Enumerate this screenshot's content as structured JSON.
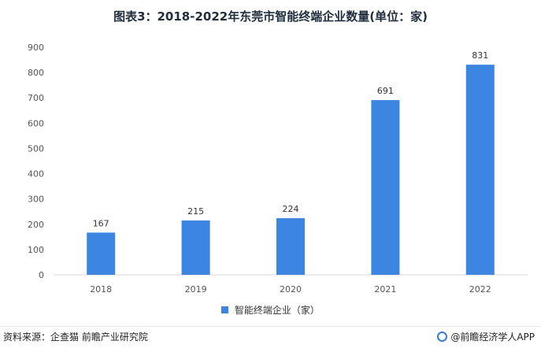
{
  "title": "图表3：2018-2022年东莞市智能终端企业数量(单位：家)",
  "chart_data": {
    "type": "bar",
    "categories": [
      "2018",
      "2019",
      "2020",
      "2021",
      "2022"
    ],
    "series": [
      {
        "name": "智能终端企业（家）",
        "values": [
          167,
          215,
          224,
          691,
          831
        ]
      }
    ],
    "data_labels": [
      "167",
      "215",
      "224",
      "691",
      "831"
    ],
    "ylim": [
      0,
      900
    ],
    "yticks": [
      0,
      100,
      200,
      300,
      400,
      500,
      600,
      700,
      800,
      900
    ],
    "grid": false,
    "legend_position": "bottom",
    "bar_color": "#3c85e0"
  },
  "legend": {
    "label": "智能终端企业（家）"
  },
  "source": "资料来源：企查猫 前瞻产业研究院",
  "brand": "@前瞻经济学人APP"
}
